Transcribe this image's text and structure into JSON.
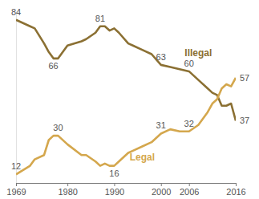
{
  "chart_data": {
    "type": "line",
    "x": [
      1969,
      1972,
      1973,
      1975,
      1976,
      1977,
      1978,
      1980,
      1983,
      1984,
      1986,
      1987,
      1988,
      1989,
      1990,
      1991,
      1993,
      1994,
      1996,
      1998,
      2000,
      2002,
      2004,
      2006,
      2008,
      2010,
      2011,
      2012,
      2013,
      2014,
      2015,
      2016
    ],
    "series": [
      {
        "name": "Illegal",
        "color": "#8b7033",
        "values": [
          84,
          81,
          80,
          73,
          69,
          66,
          66,
          72,
          74,
          75,
          78,
          81,
          81,
          79,
          80,
          78,
          73,
          72,
          70,
          68,
          63,
          62,
          61,
          60,
          56,
          52,
          50,
          49,
          44,
          44,
          45,
          37
        ]
      },
      {
        "name": "Legal",
        "color": "#d4a74d",
        "values": [
          12,
          16,
          19,
          21,
          28,
          30,
          30,
          26,
          21,
          21,
          18,
          16,
          17,
          16,
          16,
          18,
          22,
          23,
          25,
          27,
          31,
          33,
          32,
          32,
          35,
          41,
          45,
          47,
          52,
          54,
          53,
          57
        ]
      }
    ],
    "xlim": [
      1969,
      2016
    ],
    "xticks": [
      1969,
      1980,
      1990,
      2000,
      2006,
      2016
    ],
    "ylim": [
      8,
      88
    ],
    "yticks": [],
    "tick_labels": "x",
    "grid": false,
    "annotations": [
      {
        "text": "84",
        "x": 1969,
        "y": 84
      },
      {
        "text": "66",
        "x": 1977,
        "y": 66
      },
      {
        "text": "81",
        "x": 1987,
        "y": 81
      },
      {
        "text": "63",
        "x": 2000,
        "y": 63
      },
      {
        "text": "60",
        "x": 2006,
        "y": 60
      },
      {
        "text": "37",
        "x": 2016,
        "y": 37
      },
      {
        "text": "12",
        "x": 1969,
        "y": 12
      },
      {
        "text": "30",
        "x": 1978,
        "y": 30
      },
      {
        "text": "16",
        "x": 1990,
        "y": 16
      },
      {
        "text": "31",
        "x": 2000,
        "y": 31
      },
      {
        "text": "32",
        "x": 2006,
        "y": 32
      },
      {
        "text": "57",
        "x": 2016,
        "y": 57
      }
    ]
  }
}
